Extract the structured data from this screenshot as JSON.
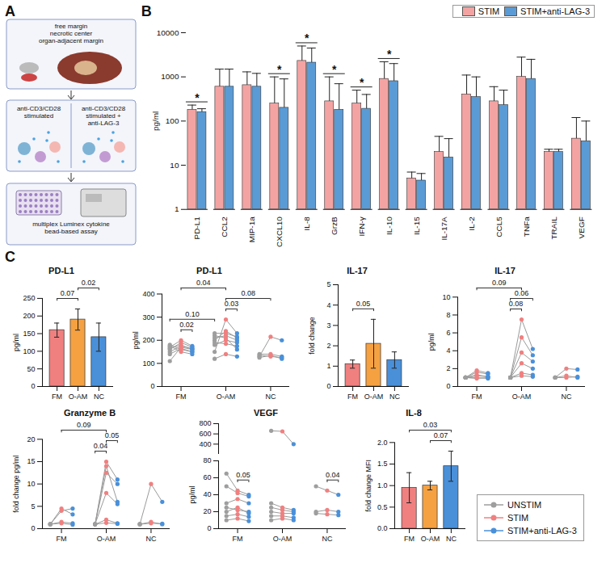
{
  "diagram": {
    "panel": "A",
    "sample_labels": [
      "free margin",
      "necrotic center",
      "organ-adjacent margin"
    ],
    "conditions": [
      "anti-CD3/CD28 stimulated",
      "anti-CD3/CD28 stimulated + anti-LAG-3"
    ],
    "readout": "multiplex Luminex cytokine bead-based assay"
  },
  "chart_data": [
    {
      "panel": "B",
      "type": "bar",
      "log": "y",
      "legend": "top-right",
      "ylabel": "pg/ml",
      "categories": [
        "PD-L1",
        "CCL2",
        "MIP-1a",
        "CXCL10",
        "IL-8",
        "GrzB",
        "IFN-γ",
        "IL-10",
        "IL-15",
        "IL-17A",
        "IL-2",
        "CCL5",
        "TNFa",
        "TRAIL",
        "VEGF"
      ],
      "ylim": [
        1,
        10000
      ],
      "yticks": [
        1,
        10,
        100,
        1000,
        10000
      ],
      "series": [
        {
          "name": "STIM",
          "color": "#f4a3a3",
          "values": [
            180,
            600,
            650,
            250,
            2300,
            280,
            250,
            900,
            5,
            20,
            400,
            280,
            1000,
            20,
            40
          ],
          "error_high": [
            230,
            1500,
            1300,
            1000,
            5000,
            1000,
            500,
            2200,
            7,
            45,
            1100,
            600,
            2800,
            23,
            120
          ]
        },
        {
          "name": "STIM+anti-LAG-3",
          "color": "#5b9bd5",
          "values": [
            160,
            600,
            600,
            200,
            2100,
            180,
            190,
            800,
            4.5,
            15,
            350,
            230,
            900,
            20,
            35
          ],
          "error_high": [
            190,
            1500,
            1200,
            900,
            4500,
            700,
            400,
            2000,
            6.5,
            40,
            1000,
            500,
            2500,
            23,
            100
          ]
        }
      ],
      "annotations": [
        {
          "category": "PD-L1",
          "label": "*"
        },
        {
          "category": "CXCL10",
          "label": "*"
        },
        {
          "category": "IL-8",
          "label": "*"
        },
        {
          "category": "GrzB",
          "label": "*"
        },
        {
          "category": "IFN-γ",
          "label": "*"
        },
        {
          "category": "IL-10",
          "label": "*"
        }
      ]
    },
    {
      "panel": "C",
      "type": "bar",
      "title": "PD-L1",
      "ylabel": "pg/ml",
      "categories": [
        "FM",
        "O-AM",
        "NC"
      ],
      "values": [
        160,
        190,
        140
      ],
      "error": [
        20,
        30,
        40
      ],
      "colors": [
        "#f08080",
        "#f5a142",
        "#4a90d9"
      ],
      "ylim": [
        0,
        250
      ],
      "yticks": [
        0,
        50,
        100,
        150,
        200,
        250
      ],
      "annotations": [
        {
          "label": "0.07",
          "from": "FM",
          "to": "O-AM"
        },
        {
          "label": "0.02",
          "from": "O-AM",
          "to": "NC"
        }
      ]
    },
    {
      "panel": "C",
      "type": "line",
      "marker": "dot",
      "title": "PD-L1",
      "ylabel": "pg/ml",
      "ylim": [
        0,
        400
      ],
      "yticks": [
        0,
        100,
        200,
        300,
        400
      ],
      "series": [
        {
          "name": "UNSTIM",
          "color": "#9e9e9e"
        },
        {
          "name": "STIM",
          "color": "#f08080"
        },
        {
          "name": "STIM+anti-LAG-3",
          "color": "#4a90d9"
        }
      ],
      "groups": [
        {
          "name": "FM",
          "subjects": [
            [
              110,
              170,
              160
            ],
            [
              160,
              190,
              170
            ],
            [
              170,
              200,
              175
            ],
            [
              150,
              175,
              165
            ],
            [
              180,
              160,
              150
            ],
            [
              140,
              165,
              150
            ],
            [
              165,
              180,
              160
            ],
            [
              175,
              150,
              140
            ]
          ]
        },
        {
          "name": "O-AM",
          "subjects": [
            [
              150,
              290,
              230
            ],
            [
              200,
              240,
              210
            ],
            [
              210,
              220,
              200
            ],
            [
              180,
              200,
              190
            ],
            [
              220,
              210,
              160
            ],
            [
              190,
              185,
              175
            ],
            [
              230,
              230,
              215
            ],
            [
              120,
              140,
              130
            ]
          ]
        },
        {
          "name": "NC",
          "subjects": [
            [
              130,
              215,
              200
            ],
            [
              140,
              140,
              130
            ],
            [
              135,
              130,
              125
            ],
            [
              125,
              135,
              120
            ]
          ]
        }
      ],
      "annotations": [
        {
          "label": "0.02",
          "from": [
            "FM",
            "STIM"
          ],
          "to": [
            "FM",
            "STIM+anti-LAG-3"
          ]
        },
        {
          "label": "0.03",
          "from": [
            "O-AM",
            "STIM"
          ],
          "to": [
            "O-AM",
            "STIM+anti-LAG-3"
          ]
        },
        {
          "label": "0.08",
          "from": [
            "O-AM",
            "STIM"
          ],
          "to": [
            "NC",
            "STIM"
          ]
        },
        {
          "label": "0.10",
          "from": [
            "FM",
            "UNSTIM"
          ],
          "to": [
            "O-AM",
            "UNSTIM"
          ]
        },
        {
          "label": "0.04",
          "from": [
            "FM",
            "STIM"
          ],
          "to": [
            "O-AM",
            "STIM"
          ]
        }
      ]
    },
    {
      "panel": "C",
      "type": "bar",
      "title": "IL-17",
      "ylabel": "fold change",
      "categories": [
        "FM",
        "O-AM",
        "NC"
      ],
      "values": [
        1.1,
        2.1,
        1.3
      ],
      "error": [
        0.2,
        1.2,
        0.4
      ],
      "colors": [
        "#f08080",
        "#f5a142",
        "#4a90d9"
      ],
      "ylim": [
        0,
        5
      ],
      "yticks": [
        0,
        1,
        2,
        3,
        4,
        5
      ],
      "annotations": [
        {
          "label": "0.05",
          "from": "FM",
          "to": "O-AM"
        }
      ]
    },
    {
      "panel": "C",
      "type": "line",
      "marker": "dot",
      "title": "IL-17",
      "ylabel": "pg/ml",
      "ylim": [
        0,
        10
      ],
      "yticks": [
        0,
        2,
        4,
        6,
        8,
        10
      ],
      "series": [
        {
          "name": "UNSTIM",
          "color": "#9e9e9e"
        },
        {
          "name": "STIM",
          "color": "#f08080"
        },
        {
          "name": "STIM+anti-LAG-3",
          "color": "#4a90d9"
        }
      ],
      "groups": [
        {
          "name": "FM",
          "subjects": [
            [
              1,
              1.2,
              1.1
            ],
            [
              1,
              1.6,
              1.4
            ],
            [
              1,
              1.0,
              0.9
            ],
            [
              1,
              1.3,
              1.1
            ],
            [
              1,
              1.8,
              1.5
            ],
            [
              1,
              0.9,
              1.0
            ]
          ]
        },
        {
          "name": "O-AM",
          "subjects": [
            [
              1,
              7.5,
              4.2
            ],
            [
              1,
              5.5,
              3.5
            ],
            [
              1,
              3.8,
              2.8
            ],
            [
              1,
              2.6,
              2.0
            ],
            [
              1,
              1.5,
              1.3
            ],
            [
              1,
              1.2,
              1.1
            ]
          ]
        },
        {
          "name": "NC",
          "subjects": [
            [
              1,
              2.0,
              1.9
            ],
            [
              1,
              1.2,
              1.0
            ],
            [
              1,
              1.0,
              1.1
            ]
          ]
        }
      ],
      "annotations": [
        {
          "label": "0.08",
          "from": [
            "O-AM",
            "UNSTIM"
          ],
          "to": [
            "O-AM",
            "STIM"
          ]
        },
        {
          "label": "0.06",
          "from": [
            "O-AM",
            "UNSTIM"
          ],
          "to": [
            "O-AM",
            "STIM+anti-LAG-3"
          ]
        },
        {
          "label": "0.09",
          "from": [
            "FM",
            "STIM"
          ],
          "to": [
            "O-AM",
            "STIM"
          ]
        }
      ]
    },
    {
      "panel": "C",
      "type": "line",
      "marker": "dot",
      "title": "Granzyme B",
      "ylabel": "fold change pg/ml",
      "ylim": [
        0,
        20
      ],
      "yticks": [
        0,
        5,
        10,
        15,
        20
      ],
      "series": [
        {
          "name": "UNSTIM",
          "color": "#9e9e9e"
        },
        {
          "name": "STIM",
          "color": "#f08080"
        },
        {
          "name": "STIM+anti-LAG-3",
          "color": "#4a90d9"
        }
      ],
      "groups": [
        {
          "name": "FM",
          "subjects": [
            [
              1,
              4.5,
              3.2
            ],
            [
              1,
              4.0,
              4.5
            ],
            [
              1,
              1.5,
              1.2
            ],
            [
              1,
              1.2,
              0.9
            ]
          ]
        },
        {
          "name": "O-AM",
          "subjects": [
            [
              1,
              15,
              11
            ],
            [
              1,
              14,
              6
            ],
            [
              1,
              12.5,
              10
            ],
            [
              1,
              8,
              5.5
            ],
            [
              1,
              2,
              1.2
            ],
            [
              1,
              1.3,
              1.1
            ]
          ]
        },
        {
          "name": "NC",
          "subjects": [
            [
              1,
              10,
              6
            ],
            [
              1,
              1.5,
              1.0
            ],
            [
              1,
              1.2,
              1.1
            ]
          ]
        }
      ],
      "annotations": [
        {
          "label": "0.04",
          "from": [
            "O-AM",
            "UNSTIM"
          ],
          "to": [
            "O-AM",
            "STIM"
          ]
        },
        {
          "label": "0.05",
          "from": [
            "O-AM",
            "STIM"
          ],
          "to": [
            "O-AM",
            "STIM+anti-LAG-3"
          ]
        },
        {
          "label": "0.09",
          "from": [
            "FM",
            "STIM"
          ],
          "to": [
            "O-AM",
            "STIM"
          ]
        }
      ]
    },
    {
      "panel": "C",
      "type": "line",
      "marker": "dot",
      "title": "VEGF",
      "ylabel": "pg/ml",
      "legend": "bottom-right",
      "ylim": [
        0,
        80
      ],
      "yticks": [
        0,
        20,
        40,
        60,
        80
      ],
      "upper": {
        "ylim": [
          200,
          800
        ],
        "yticks": [
          400,
          600,
          800
        ]
      },
      "series": [
        {
          "name": "UNSTIM",
          "color": "#9e9e9e"
        },
        {
          "name": "STIM",
          "color": "#f08080"
        },
        {
          "name": "STIM+anti-LAG-3",
          "color": "#4a90d9"
        }
      ],
      "groups": [
        {
          "name": "FM",
          "subjects": [
            [
              65,
              45,
              40
            ],
            [
              50,
              42,
              38
            ],
            [
              30,
              35,
              30
            ],
            [
              25,
              22,
              20
            ],
            [
              20,
              25,
              18
            ],
            [
              15,
              17,
              14
            ],
            [
              10,
              12,
              9
            ]
          ]
        },
        {
          "name": "O-AM",
          "subjects": [
            [
              660,
              650,
              400
            ],
            [
              30,
              25,
              22
            ],
            [
              25,
              22,
              20
            ],
            [
              20,
              18,
              18
            ],
            [
              15,
              15,
              13
            ],
            [
              10,
              12,
              10
            ]
          ]
        },
        {
          "name": "NC",
          "subjects": [
            [
              50,
              45,
              40
            ],
            [
              20,
              22,
              20
            ],
            [
              18,
              17,
              16
            ]
          ]
        }
      ],
      "annotations": [
        {
          "label": "0.05",
          "from": [
            "FM",
            "STIM"
          ],
          "to": [
            "FM",
            "STIM+anti-LAG-3"
          ]
        },
        {
          "label": "0.04",
          "from": [
            "NC",
            "STIM"
          ],
          "to": [
            "NC",
            "STIM+anti-LAG-3"
          ]
        }
      ]
    },
    {
      "panel": "C",
      "type": "bar",
      "title": "IL-8",
      "ylabel": "fold change MFI",
      "categories": [
        "FM",
        "O-AM",
        "NC"
      ],
      "values": [
        0.95,
        1.0,
        1.45
      ],
      "error": [
        0.35,
        0.1,
        0.35
      ],
      "colors": [
        "#f08080",
        "#f5a142",
        "#4a90d9"
      ],
      "ylim": [
        0,
        2
      ],
      "yticks": [
        {
          "value": 0,
          "label": "0.0"
        },
        0.5,
        {
          "value": 1,
          "label": "1.0"
        },
        1.5,
        {
          "value": 2,
          "label": "2.0"
        }
      ],
      "annotations": [
        {
          "label": "0.07",
          "from": "O-AM",
          "to": "NC"
        },
        {
          "label": "0.03",
          "from": "FM",
          "to": "NC"
        }
      ]
    }
  ]
}
